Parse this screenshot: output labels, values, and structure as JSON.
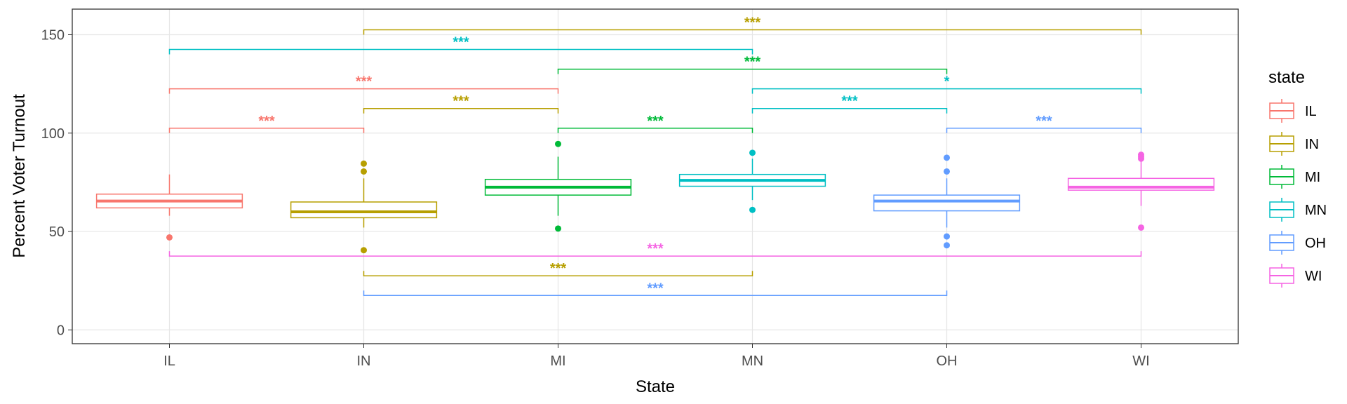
{
  "chart_data": {
    "type": "boxplot",
    "title": "",
    "xlabel": "State",
    "ylabel": "Percent Voter Turnout",
    "ylim": [
      -7,
      163
    ],
    "y_ticks": [
      0,
      50,
      100,
      150
    ],
    "grid": true,
    "legend": {
      "title": "state",
      "position": "right",
      "entries": [
        "IL",
        "IN",
        "MI",
        "MN",
        "OH",
        "WI"
      ]
    },
    "categories": [
      "IL",
      "IN",
      "MI",
      "MN",
      "OH",
      "WI"
    ],
    "colors": {
      "IL": "#F8766D",
      "IN": "#B79F00",
      "MI": "#00BA38",
      "MN": "#00BFC4",
      "OH": "#619CFF",
      "WI": "#F564E3"
    },
    "boxes": [
      {
        "category": "IL",
        "min": 58,
        "q1": 62,
        "median": 65.5,
        "q3": 69,
        "max": 79,
        "outliers": [
          47
        ]
      },
      {
        "category": "IN",
        "min": 52,
        "q1": 57,
        "median": 60,
        "q3": 65,
        "max": 77,
        "outliers": [
          40.5,
          80.5,
          84.5
        ]
      },
      {
        "category": "MI",
        "min": 58,
        "q1": 68.5,
        "median": 72.5,
        "q3": 76.5,
        "max": 88,
        "outliers": [
          51.5,
          94.5
        ]
      },
      {
        "category": "MN",
        "min": 66,
        "q1": 73,
        "median": 76,
        "q3": 79,
        "max": 87,
        "outliers": [
          61,
          90
        ]
      },
      {
        "category": "OH",
        "min": 52,
        "q1": 60.5,
        "median": 65.5,
        "q3": 68.5,
        "max": 77,
        "outliers": [
          43,
          47.5,
          80.5,
          87.5
        ]
      },
      {
        "category": "WI",
        "min": 63,
        "q1": 71,
        "median": 72.5,
        "q3": 77,
        "max": 86,
        "outliers": [
          52,
          87,
          88,
          89
        ]
      }
    ],
    "comparisons": [
      {
        "from": "IL",
        "to": "IN",
        "y": 102.5,
        "label": "***",
        "color": "#F8766D",
        "ticks": "down"
      },
      {
        "from": "IL",
        "to": "MI",
        "y": 122.5,
        "label": "***",
        "color": "#F8766D",
        "ticks": "down"
      },
      {
        "from": "IL",
        "to": "MN",
        "y": 142.5,
        "label": "***",
        "color": "#00BFC4",
        "ticks": "down"
      },
      {
        "from": "IN",
        "to": "MI",
        "y": 112.5,
        "label": "***",
        "color": "#B79F00",
        "ticks": "down"
      },
      {
        "from": "IN",
        "to": "WI",
        "y": 152.5,
        "label": "***",
        "color": "#B79F00",
        "ticks": "down"
      },
      {
        "from": "MI",
        "to": "MN",
        "y": 102.5,
        "label": "***",
        "color": "#00BA38",
        "ticks": "down"
      },
      {
        "from": "MI",
        "to": "OH",
        "y": 132.5,
        "label": "***",
        "color": "#00BA38",
        "ticks": "down"
      },
      {
        "from": "MN",
        "to": "OH",
        "y": 112.5,
        "label": "***",
        "color": "#00BFC4",
        "ticks": "down"
      },
      {
        "from": "MN",
        "to": "WI",
        "y": 122.5,
        "label": "*",
        "color": "#00BFC4",
        "ticks": "down"
      },
      {
        "from": "OH",
        "to": "WI",
        "y": 102.5,
        "label": "***",
        "color": "#619CFF",
        "ticks": "down"
      },
      {
        "from": "IL",
        "to": "WI",
        "y": 37.5,
        "label": "***",
        "color": "#F564E3",
        "ticks": "up"
      },
      {
        "from": "IN",
        "to": "MN",
        "y": 27.5,
        "label": "***",
        "color": "#B79F00",
        "ticks": "up"
      },
      {
        "from": "IN",
        "to": "OH",
        "y": 17.5,
        "label": "***",
        "color": "#619CFF",
        "ticks": "up"
      }
    ]
  }
}
